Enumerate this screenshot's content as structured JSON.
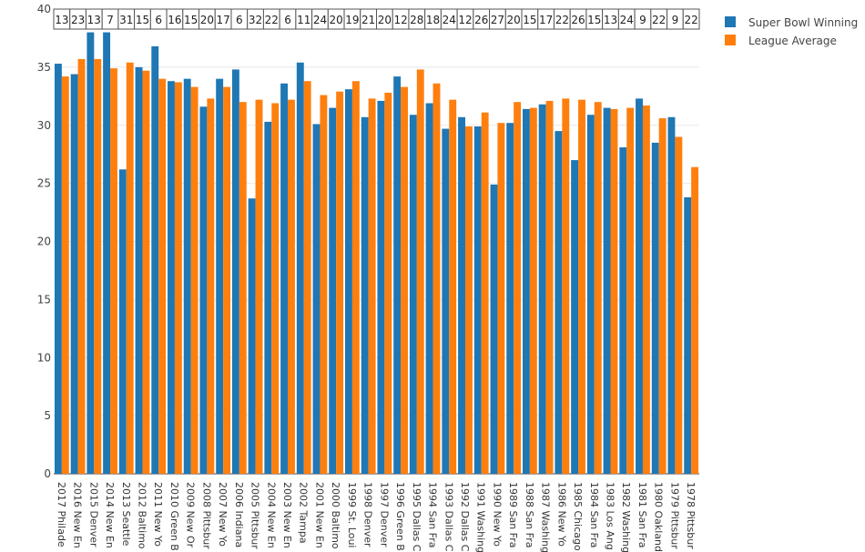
{
  "chart_data": {
    "type": "bar",
    "title": "",
    "xlabel": "",
    "ylabel": "",
    "ylim": [
      0,
      40
    ],
    "yticks": [
      0,
      5,
      10,
      15,
      20,
      25,
      30,
      35,
      40
    ],
    "grid": true,
    "legend_position": "top-right",
    "categories": [
      "2017 Philade",
      "2016 New En",
      "2015 Denver",
      "2014 New En",
      "2013 Seattle",
      "2012 Baltimo",
      "2011 New Yo",
      "2010 Green B",
      "2009 New Or",
      "2008 Pittsbur",
      "2007 New Yo",
      "2006 Indiana",
      "2005 Pittsbur",
      "2004 New En",
      "2003 New En",
      "2002 Tampa",
      "2001 New En",
      "2000 Baltimo",
      "1999 St. Loui",
      "1998 Denver",
      "1997 Denver",
      "1996 Green B",
      "1995 Dallas C",
      "1994 San Fra",
      "1993 Dallas C",
      "1992 Dallas C",
      "1991 Washing",
      "1990 New Yo",
      "1989 San Fra",
      "1988 San Fra",
      "1987 Washing",
      "1986 New Yo",
      "1985 Chicago",
      "1984 San Fra",
      "1983 Los Ang",
      "1982 Washing",
      "1981 San Fra",
      "1980 Oakland",
      "1979 Pittsbur",
      "1978 Pittsbur"
    ],
    "top_labels": [
      13,
      23,
      13,
      7,
      31,
      15,
      6,
      16,
      15,
      20,
      17,
      6,
      32,
      22,
      6,
      11,
      24,
      20,
      19,
      21,
      20,
      12,
      28,
      18,
      24,
      12,
      26,
      27,
      20,
      15,
      17,
      22,
      26,
      15,
      13,
      24,
      9,
      22,
      9,
      22
    ],
    "series": [
      {
        "name": "Super Bowl Winning",
        "color": "#1f77b4",
        "values": [
          35.3,
          34.4,
          38.0,
          38.0,
          26.2,
          35.0,
          36.8,
          33.8,
          34.0,
          31.6,
          34.0,
          34.8,
          23.7,
          30.3,
          33.6,
          35.4,
          30.1,
          31.5,
          33.1,
          30.7,
          32.1,
          34.2,
          30.9,
          31.9,
          29.7,
          30.7,
          29.9,
          24.9,
          30.2,
          31.4,
          31.8,
          29.5,
          27.0,
          30.9,
          31.5,
          28.1,
          32.3,
          28.5,
          30.7,
          23.8
        ]
      },
      {
        "name": "League Average",
        "color": "#ff7f0e",
        "values": [
          34.2,
          35.7,
          35.7,
          34.9,
          35.4,
          34.7,
          34.0,
          33.7,
          33.3,
          32.3,
          33.3,
          32.0,
          32.2,
          31.9,
          32.2,
          33.8,
          32.6,
          32.9,
          33.8,
          32.3,
          32.8,
          33.3,
          34.8,
          33.6,
          32.2,
          29.9,
          31.1,
          30.2,
          32.0,
          31.5,
          32.1,
          32.3,
          32.2,
          32.0,
          31.4,
          31.5,
          31.7,
          30.6,
          29.0,
          26.4
        ]
      }
    ]
  }
}
